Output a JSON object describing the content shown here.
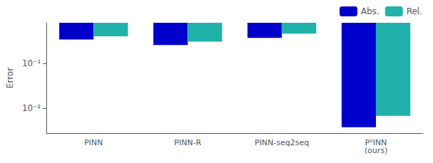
{
  "chart_data": {
    "type": "bar",
    "categories": [
      "PINN",
      "PINN-R",
      "PINN-seq2seq",
      "P²INN\n(ours)"
    ],
    "series": [
      {
        "name": "Abs.",
        "color": "#0000CC",
        "values": [
          0.34,
          0.255,
          0.37,
          0.0038
        ]
      },
      {
        "name": "Rel.",
        "color": "#20B2AA",
        "values": [
          0.4,
          0.305,
          0.46,
          0.0068
        ]
      }
    ],
    "ylabel": "Error",
    "ylim": [
      0.0028,
      0.8
    ],
    "yticks": [
      {
        "value": 0.01,
        "label": "10⁻²"
      },
      {
        "value": 0.1,
        "label": "10⁻¹"
      }
    ],
    "log": "y",
    "legend": "upper right",
    "grid": false
  }
}
